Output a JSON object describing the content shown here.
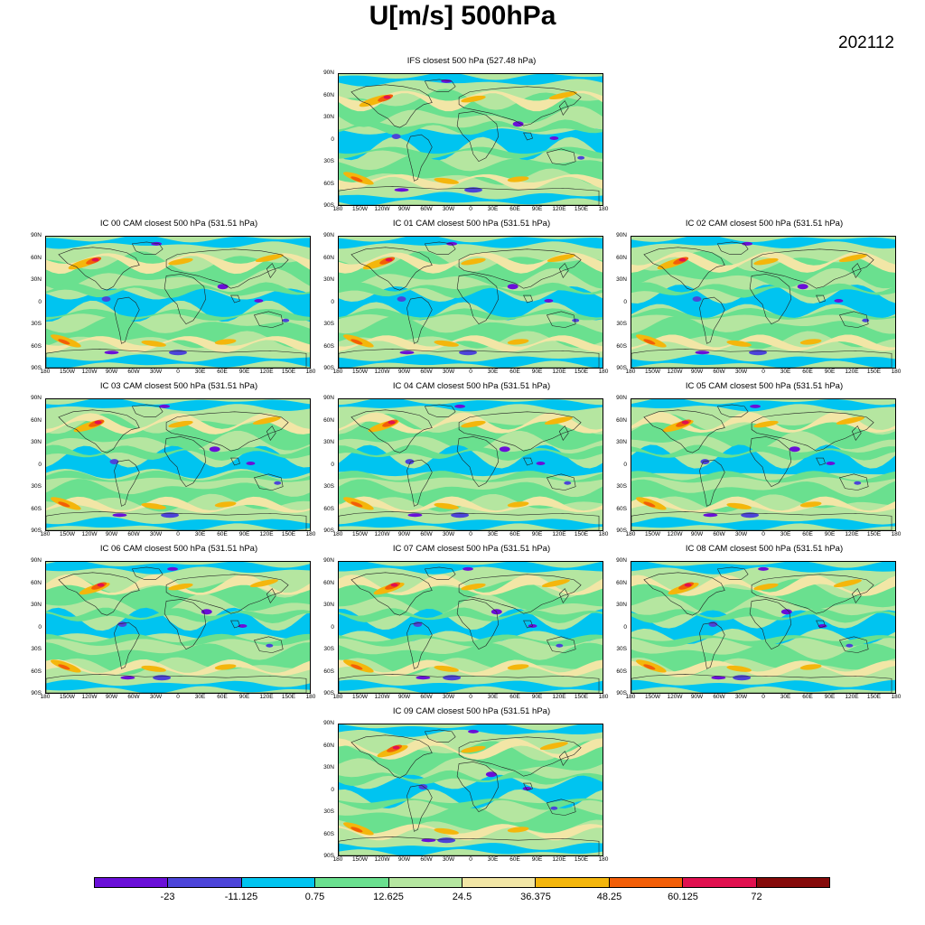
{
  "title": "U[m/s] 500hPa",
  "date": "202112",
  "panels": [
    {
      "id": "ifs",
      "title": "IFS closest 500 hPa (527.48 hPa)"
    },
    {
      "id": "ic00",
      "title": "IC 00 CAM closest 500 hPa (531.51 hPa)"
    },
    {
      "id": "ic01",
      "title": "IC 01 CAM closest 500 hPa (531.51 hPa)"
    },
    {
      "id": "ic02",
      "title": "IC 02 CAM closest 500 hPa (531.51 hPa)"
    },
    {
      "id": "ic03",
      "title": "IC 03 CAM closest 500 hPa (531.51 hPa)"
    },
    {
      "id": "ic04",
      "title": "IC 04 CAM closest 500 hPa (531.51 hPa)"
    },
    {
      "id": "ic05",
      "title": "IC 05 CAM closest 500 hPa (531.51 hPa)"
    },
    {
      "id": "ic06",
      "title": "IC 06 CAM closest 500 hPa (531.51 hPa)"
    },
    {
      "id": "ic07",
      "title": "IC 07 CAM closest 500 hPa (531.51 hPa)"
    },
    {
      "id": "ic08",
      "title": "IC 08 CAM closest 500 hPa (531.51 hPa)"
    },
    {
      "id": "ic09",
      "title": "IC 09 CAM closest 500 hPa (531.51 hPa)"
    }
  ],
  "lat_labels": [
    "90N",
    "60N",
    "30N",
    "0",
    "30S",
    "60S",
    "90S"
  ],
  "lon_labels": [
    "180",
    "150W",
    "120W",
    "90W",
    "60W",
    "30W",
    "0",
    "30E",
    "60E",
    "90E",
    "120E",
    "150E",
    "180"
  ],
  "colorbar": {
    "colors": [
      "#6a0fd8",
      "#4c44d9",
      "#00c4f0",
      "#6ae08f",
      "#b5e6a0",
      "#f2e6a6",
      "#f4b60c",
      "#f25e07",
      "#e0104f",
      "#850a0a"
    ],
    "labels": [
      "-23",
      "-11.125",
      "0.75",
      "12.625",
      "24.5",
      "36.375",
      "48.25",
      "60.125",
      "72"
    ]
  }
}
